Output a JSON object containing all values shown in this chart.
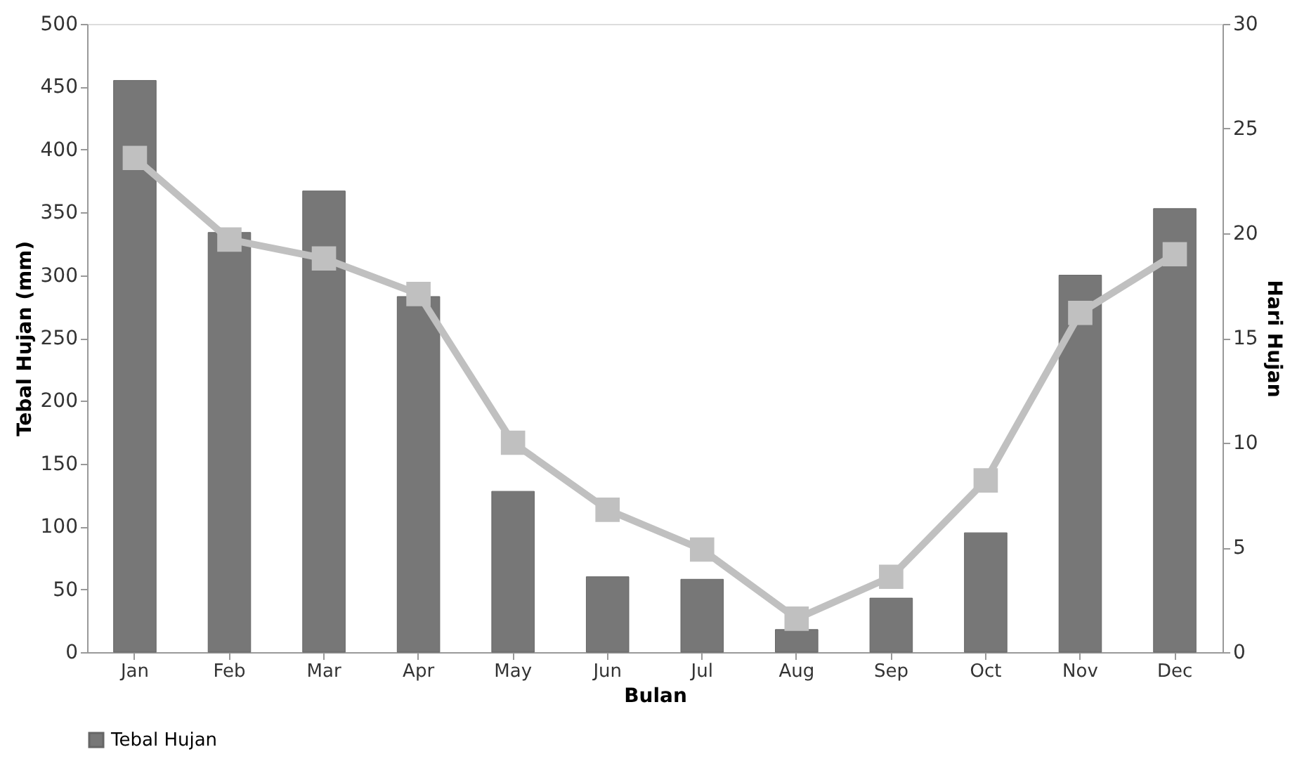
{
  "chart_data": {
    "type": "bar",
    "xlabel": "Bulan",
    "ylabel": "Tebal Hujan (mm)",
    "y2label": "Hari Hujan",
    "categories": [
      "Jan",
      "Feb",
      "Mar",
      "Apr",
      "May",
      "Jun",
      "Jul",
      "Aug",
      "Sep",
      "Oct",
      "Nov",
      "Dec"
    ],
    "series": [
      {
        "name": "Tebal Hujan",
        "color": "#777777",
        "values": [
          455,
          334,
          367,
          283,
          128,
          60,
          58,
          18,
          43,
          95,
          300,
          353
        ]
      },
      {
        "type": "line",
        "axis": "y2",
        "color": "#c0c0c0",
        "marker": "square",
        "values": [
          23.6,
          19.7,
          18.8,
          17.1,
          10.0,
          6.8,
          4.9,
          1.6,
          3.6,
          8.2,
          16.2,
          19.0
        ]
      }
    ],
    "ylim": [
      0,
      500
    ],
    "yticks": [
      0,
      50,
      100,
      150,
      200,
      250,
      300,
      350,
      400,
      450,
      500
    ],
    "y2lim": [
      0,
      30
    ],
    "y2ticks": [
      0,
      5,
      10,
      15,
      20,
      25,
      30
    ],
    "grid": false,
    "legend": "bottom"
  }
}
